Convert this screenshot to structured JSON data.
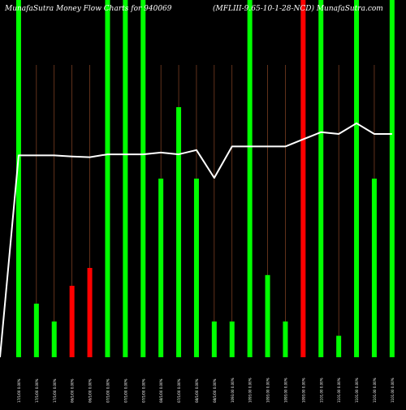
{
  "chart_data": {
    "type": "bar",
    "title_left": "MunafaSutra  Money Flow  Charts for 940069",
    "title_right": "(MFLIII-9.65-10-1-28-NCD) MunafaSutra.com",
    "colors": {
      "green": "#00ff00",
      "red": "#ff0000",
      "line": "#ffffff",
      "divider": "#a0522d",
      "background": "#000000"
    },
    "ylim": [
      0,
      100
    ],
    "categories": [
      "17/1/00 0.00%",
      "17/1/00 0.00%",
      "17/1/00 0.00%",
      "06/1/00 0.00%",
      "06/1/00 0.00%",
      "07/1/00 0.00%",
      "07/1/00 0.00%",
      "07/1/00 0.00%",
      "08/1/00 0.00%",
      "07/1/00 0.00%",
      "08/1/00 0.00%",
      "08/1/00 0.00%",
      "1093.00 0.00%",
      "1093.00 0.00%",
      "1093.00 0.00%",
      "1093.00 0.00%",
      "1093.00 0.00%",
      "1101.00 0.00%",
      "1101.00 0.00%",
      "1101.00 0.00%",
      "1101.00 0.00%",
      "1101.00 0.00%"
    ],
    "values": [
      100,
      15,
      10,
      20,
      25,
      100,
      100,
      100,
      50,
      70,
      50,
      10,
      10,
      100,
      23,
      10,
      100,
      100,
      6,
      100,
      50,
      100
    ],
    "bar_colors": [
      "green",
      "green",
      "green",
      "red",
      "red",
      "green",
      "green",
      "green",
      "green",
      "green",
      "green",
      "green",
      "green",
      "green",
      "green",
      "green",
      "red",
      "green",
      "green",
      "green",
      "green",
      "green"
    ],
    "line_values": [
      56.5,
      56.5,
      56.5,
      56.2,
      56,
      56.8,
      56.8,
      56.8,
      57.3,
      56.8,
      58,
      50.2,
      59,
      59,
      59,
      59,
      61,
      63,
      62.5,
      65.5,
      62.5,
      62.5
    ]
  }
}
